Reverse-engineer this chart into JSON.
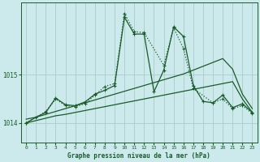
{
  "title": "Graphe pression niveau de la mer (hPa)",
  "background_color": "#cce9ec",
  "plot_bg_color": "#cce9ec",
  "grid_color": "#aacccc",
  "line_color": "#1a5c28",
  "xlim": [
    -0.5,
    23.5
  ],
  "ylim": [
    1013.6,
    1016.5
  ],
  "yticks": [
    1014,
    1015
  ],
  "xticks": [
    0,
    1,
    2,
    3,
    4,
    5,
    6,
    7,
    8,
    9,
    10,
    11,
    12,
    13,
    14,
    15,
    16,
    17,
    18,
    19,
    20,
    21,
    22,
    23
  ],
  "series1_x": [
    0,
    1,
    2,
    3,
    4,
    5,
    6,
    7,
    8,
    9,
    10,
    11,
    12,
    13,
    14,
    15,
    16,
    17,
    18,
    19,
    20,
    21,
    22,
    23
  ],
  "series1_y": [
    1014.0,
    1014.05,
    1014.1,
    1014.15,
    1014.18,
    1014.22,
    1014.26,
    1014.3,
    1014.34,
    1014.38,
    1014.42,
    1014.46,
    1014.5,
    1014.54,
    1014.58,
    1014.62,
    1014.66,
    1014.7,
    1014.74,
    1014.78,
    1014.82,
    1014.86,
    1014.5,
    1014.22
  ],
  "series2_x": [
    0,
    1,
    2,
    3,
    4,
    5,
    6,
    7,
    8,
    9,
    10,
    11,
    12,
    13,
    14,
    15,
    16,
    17,
    18,
    19,
    20,
    21,
    22,
    23
  ],
  "series2_y": [
    1014.08,
    1014.12,
    1014.18,
    1014.24,
    1014.3,
    1014.36,
    1014.42,
    1014.48,
    1014.54,
    1014.6,
    1014.66,
    1014.72,
    1014.78,
    1014.84,
    1014.9,
    1014.96,
    1015.02,
    1015.1,
    1015.18,
    1015.26,
    1015.34,
    1015.12,
    1014.6,
    1014.3
  ],
  "series3_x": [
    0,
    1,
    2,
    3,
    4,
    5,
    6,
    7,
    8,
    9,
    10,
    11,
    12,
    13,
    14,
    15,
    16,
    17,
    18,
    19,
    20,
    21,
    22,
    23
  ],
  "series3_y": [
    1014.0,
    1014.12,
    1014.22,
    1014.52,
    1014.38,
    1014.36,
    1014.44,
    1014.6,
    1014.68,
    1014.78,
    1016.2,
    1015.85,
    1015.85,
    1014.65,
    1015.1,
    1016.0,
    1015.8,
    1014.78,
    1014.45,
    1014.42,
    1014.58,
    1014.32,
    1014.4,
    1014.22
  ],
  "series4_x": [
    0,
    2,
    3,
    4,
    5,
    6,
    7,
    8,
    9,
    10,
    11,
    12,
    14,
    15,
    16,
    17,
    19,
    20,
    21,
    22,
    23
  ],
  "series4_y": [
    1014.0,
    1014.24,
    1014.5,
    1014.36,
    1014.34,
    1014.4,
    1014.58,
    1014.76,
    1014.82,
    1016.28,
    1015.9,
    1015.88,
    1015.2,
    1015.98,
    1015.55,
    1014.72,
    1014.42,
    1014.5,
    1014.3,
    1014.36,
    1014.2
  ]
}
